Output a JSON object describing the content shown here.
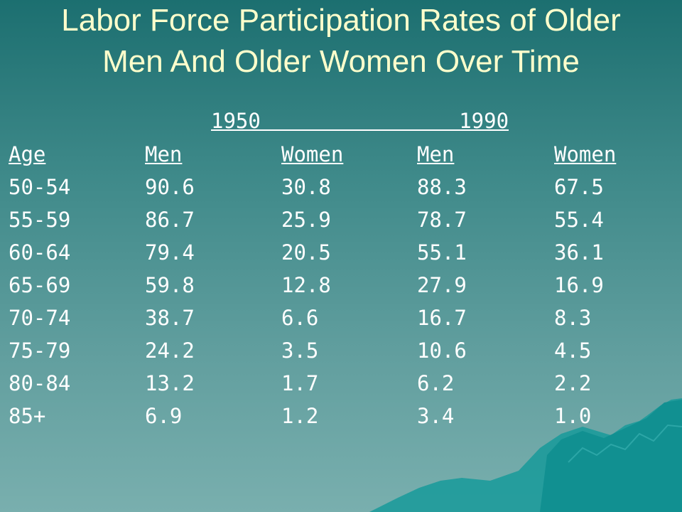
{
  "slide": {
    "title": "Labor Force Participation Rates of Older Men And Older Women Over Time",
    "years": {
      "y1950": "1950                1990"
    },
    "table": {
      "headers": [
        "Age",
        "Men",
        "Women",
        "Men",
        "Women"
      ],
      "rows": [
        [
          "50-54",
          "90.6",
          "30.8",
          "88.3",
          "67.5"
        ],
        [
          "55-59",
          "86.7",
          "25.9",
          "78.7",
          "55.4"
        ],
        [
          "60-64",
          "79.4",
          "20.5",
          "55.1",
          "36.1"
        ],
        [
          "65-69",
          "59.8",
          "12.8",
          "27.9",
          "16.9"
        ],
        [
          "70-74",
          "38.7",
          "6.6",
          "16.7",
          "8.3"
        ],
        [
          "75-79",
          "24.2",
          "3.5",
          "10.6",
          "4.5"
        ],
        [
          "80-84",
          "13.2",
          "1.7",
          "6.2",
          "2.2"
        ],
        [
          "85+",
          "6.9",
          "1.2",
          "3.4",
          "1.0"
        ]
      ]
    }
  },
  "colors": {
    "title": "#ffffcc",
    "text": "#ffffff",
    "bg_top": "#1c6f70",
    "bg_bottom": "#79afae",
    "mountain": "#1a9c9c"
  },
  "decor": {
    "background_icon": "iceberg-mountain-icon"
  }
}
